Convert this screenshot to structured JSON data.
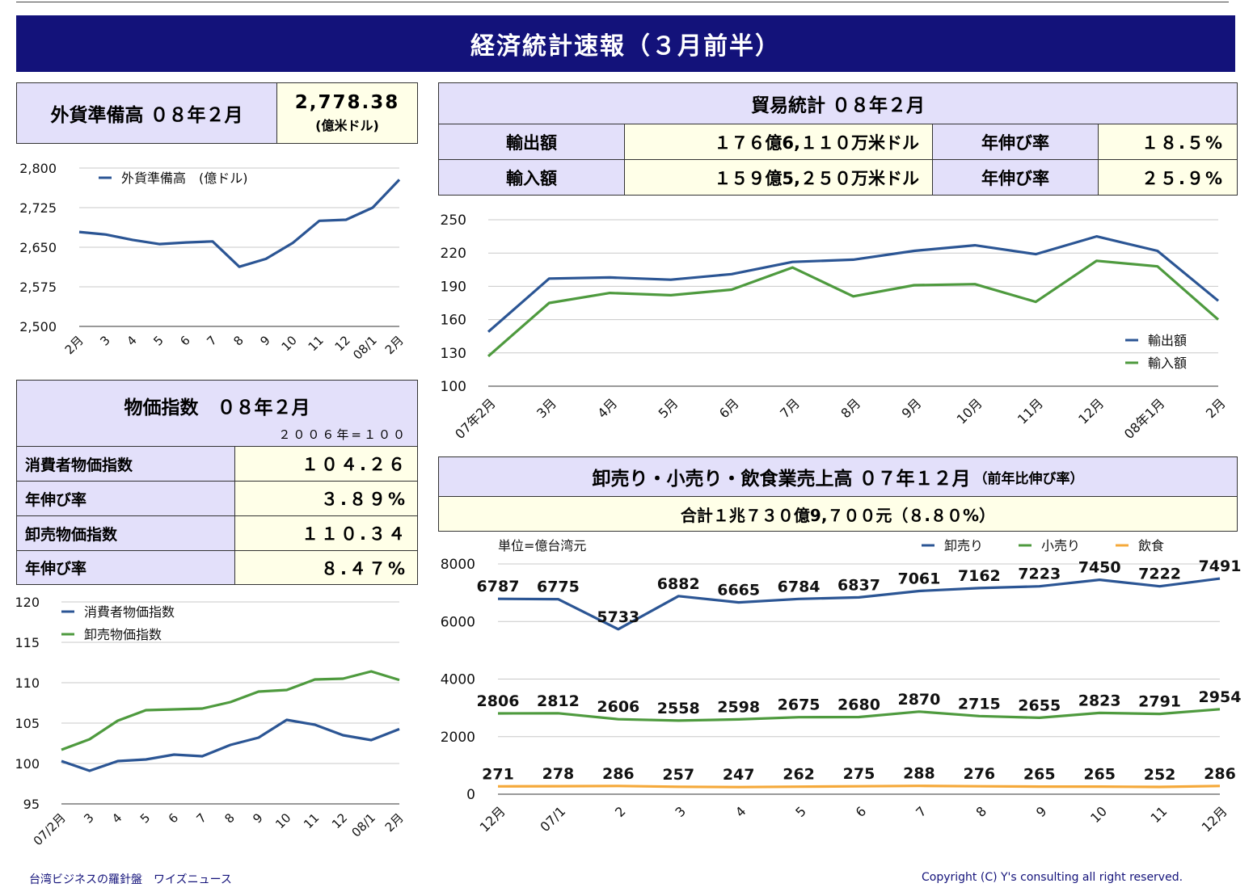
{
  "banner": {
    "title": "経済統計速報（３月前半）"
  },
  "forex": {
    "label": "外貨準備高 ０８年２月",
    "value": "2,778.38",
    "unit": "(億米ドル)"
  },
  "trade": {
    "title": "貿易統計 ０８年２月",
    "rows": [
      {
        "label": "輸出額",
        "value": "１７６億6,１１０万米ドル",
        "growth_label": "年伸び率",
        "growth": "１８.５%"
      },
      {
        "label": "輸入額",
        "value": "１５９億5,２５０万米ドル",
        "growth_label": "年伸び率",
        "growth": "２５.９%"
      }
    ]
  },
  "price": {
    "title": "物価指数　０８年２月",
    "base": "２００６年=１００",
    "rows": [
      {
        "label": "消費者物価指数",
        "value": "１０４.２６"
      },
      {
        "label": "年伸び率",
        "value": "３.８９%"
      },
      {
        "label": "卸売物価指数",
        "value": "１１０.３４"
      },
      {
        "label": "年伸び率",
        "value": "８.４７%"
      }
    ]
  },
  "sales": {
    "title": "卸売り・小売り・飲食業売上高 ０７年１２月",
    "title_note": "（前年比伸び率）",
    "total": "合計１兆７３０億9,７００元（８.８０%）"
  },
  "footer": {
    "left": "台湾ビジネスの羅針盤　ワイズニュース",
    "right": "Copyright (C) Y's consulting all right reserved."
  },
  "colors": {
    "navy": "#13127a",
    "blue": "#2b5594",
    "green": "#4e9a3e",
    "orange": "#f5a93a",
    "header_bg": "#e3e0fa",
    "value_bg": "#ffffe8"
  },
  "chart_data": [
    {
      "id": "forex",
      "type": "line",
      "categories": [
        "2月",
        "3",
        "4",
        "5",
        "6",
        "7",
        "8",
        "9",
        "10",
        "11",
        "12",
        "08/1",
        "2月"
      ],
      "series": [
        {
          "name": "外貨準備高　(億ドル)",
          "values": [
            2679,
            2674,
            2664,
            2656,
            2659,
            2661,
            2613,
            2628,
            2658,
            2700,
            2702,
            2725,
            2778
          ]
        }
      ],
      "yticks": [
        "2,800",
        "2,725",
        "2,650",
        "2,575",
        "2,500"
      ],
      "ylim": [
        2500,
        2800
      ],
      "legend": "top-left",
      "grid": true
    },
    {
      "id": "trade",
      "type": "line",
      "categories": [
        "07年2月",
        "3月",
        "4月",
        "5月",
        "6月",
        "7月",
        "8月",
        "9月",
        "10月",
        "11月",
        "12月",
        "08年1月",
        "2月"
      ],
      "series": [
        {
          "name": "輸出額",
          "values": [
            149,
            197,
            198,
            196,
            201,
            212,
            214,
            222,
            227,
            219,
            235,
            222,
            177
          ]
        },
        {
          "name": "輸入額",
          "values": [
            127,
            175,
            184,
            182,
            187,
            207,
            181,
            191,
            192,
            176,
            213,
            208,
            160
          ]
        }
      ],
      "yticks": [
        "250",
        "220",
        "190",
        "160",
        "130",
        "100"
      ],
      "ylim": [
        100,
        250
      ],
      "legend": "right",
      "grid": true
    },
    {
      "id": "price",
      "type": "line",
      "categories": [
        "07/2月",
        "3",
        "4",
        "5",
        "6",
        "7",
        "8",
        "9",
        "10",
        "11",
        "12",
        "08/1",
        "2月"
      ],
      "series": [
        {
          "name": "消費者物価指数",
          "values": [
            100.3,
            99.1,
            100.3,
            100.5,
            101.1,
            100.9,
            102.3,
            103.2,
            105.4,
            104.8,
            103.5,
            102.9,
            104.26
          ]
        },
        {
          "name": "卸売物価指数",
          "values": [
            101.7,
            103.0,
            105.3,
            106.6,
            106.7,
            106.8,
            107.6,
            108.9,
            109.1,
            110.4,
            110.5,
            111.4,
            110.34
          ]
        }
      ],
      "yticks": [
        "120",
        "115",
        "110",
        "105",
        "100",
        "95"
      ],
      "ylim": [
        95,
        120
      ],
      "legend": "top-left",
      "grid": true
    },
    {
      "id": "sales",
      "type": "line",
      "categories": [
        "12月",
        "07/1",
        "2",
        "3",
        "4",
        "5",
        "6",
        "7",
        "8",
        "9",
        "10",
        "11",
        "12月"
      ],
      "unit_label": "単位=億台湾元",
      "series": [
        {
          "name": "卸売り",
          "values": [
            6787,
            6775,
            5733,
            6882,
            6665,
            6784,
            6837,
            7061,
            7162,
            7223,
            7450,
            7222,
            7491
          ]
        },
        {
          "name": "小売り",
          "values": [
            2806,
            2812,
            2606,
            2558,
            2598,
            2675,
            2680,
            2870,
            2715,
            2655,
            2823,
            2791,
            2954
          ]
        },
        {
          "name": "飲食",
          "values": [
            271,
            278,
            286,
            257,
            247,
            262,
            275,
            288,
            276,
            265,
            265,
            252,
            286
          ]
        }
      ],
      "yticks": [
        "8000",
        "6000",
        "4000",
        "2000",
        "0"
      ],
      "ylim": [
        0,
        8000
      ],
      "legend": "top",
      "grid": true
    }
  ]
}
